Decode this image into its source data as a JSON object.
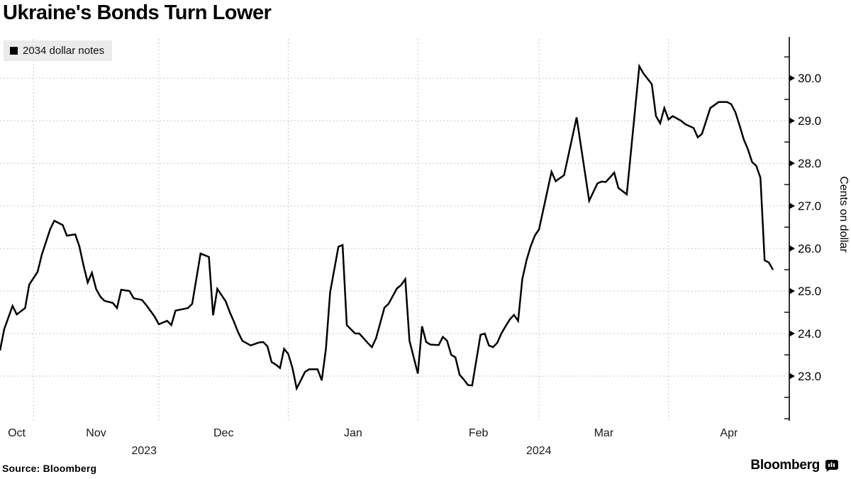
{
  "header": {
    "title": "Ukraine's Bonds Turn Lower"
  },
  "legend": {
    "label": "2034 dollar notes"
  },
  "footer": {
    "source": "Source: Bloomberg",
    "brand": "Bloomberg"
  },
  "icons": {
    "legend_swatch": "black-square",
    "brand_icon": "bloomberg-terminal-speech-bubble-bars"
  },
  "colors": {
    "background": "#ffffff",
    "line": "#000000",
    "grid": "#c9c9c9",
    "axis": "#000000",
    "legend_bg": "#ebebeb",
    "text": "#000000"
  },
  "chart_data": {
    "type": "line",
    "title": "Ukraine's Bonds Turn Lower",
    "ylabel": "Cents on dollar",
    "xlabel": "",
    "grid": "dashed",
    "legend_position": "top-left",
    "legend_entries": [
      "2034 dollar notes"
    ],
    "ylim": [
      21.95,
      30.92
    ],
    "y_ticks": [
      23,
      24,
      25,
      26,
      27,
      28,
      29,
      30
    ],
    "y_minor_ticks": [
      22,
      22.5,
      23.5,
      24.5,
      25.5,
      26.5,
      27.5,
      28.5,
      29.5,
      30.5
    ],
    "x_range": [
      "2023-10-24",
      "2024-04-26"
    ],
    "month_gridlines": [
      "2023-11-01",
      "2023-12-01",
      "2024-01-01",
      "2024-02-01",
      "2024-03-01",
      "2024-04-01"
    ],
    "month_labels": [
      "Oct",
      "Nov",
      "Dec",
      "Jan",
      "Feb",
      "Mar",
      "Apr"
    ],
    "year_labels": [
      "2023",
      "2024"
    ],
    "series": [
      {
        "name": "2034 dollar notes",
        "color": "#000000",
        "points": [
          [
            "2023-10-24",
            23.6
          ],
          [
            "2023-10-25",
            24.1
          ],
          [
            "2023-10-27",
            24.65
          ],
          [
            "2023-10-28",
            24.45
          ],
          [
            "2023-10-30",
            24.6
          ],
          [
            "2023-10-31",
            25.15
          ],
          [
            "2023-11-01",
            25.3
          ],
          [
            "2023-11-02",
            25.45
          ],
          [
            "2023-11-03",
            25.85
          ],
          [
            "2023-11-05",
            26.45
          ],
          [
            "2023-11-06",
            26.65
          ],
          [
            "2023-11-08",
            26.55
          ],
          [
            "2023-11-09",
            26.3
          ],
          [
            "2023-11-11",
            26.33
          ],
          [
            "2023-11-12",
            26.05
          ],
          [
            "2023-11-13",
            25.6
          ],
          [
            "2023-11-14",
            25.2
          ],
          [
            "2023-11-15",
            25.43
          ],
          [
            "2023-11-16",
            25.05
          ],
          [
            "2023-11-17",
            24.87
          ],
          [
            "2023-11-18",
            24.77
          ],
          [
            "2023-11-20",
            24.72
          ],
          [
            "2023-11-21",
            24.6
          ],
          [
            "2023-11-22",
            25.03
          ],
          [
            "2023-11-24",
            25.0
          ],
          [
            "2023-11-25",
            24.83
          ],
          [
            "2023-11-27",
            24.79
          ],
          [
            "2023-11-28",
            24.67
          ],
          [
            "2023-11-30",
            24.4
          ],
          [
            "2023-12-01",
            24.22
          ],
          [
            "2023-12-03",
            24.3
          ],
          [
            "2023-12-04",
            24.2
          ],
          [
            "2023-12-05",
            24.54
          ],
          [
            "2023-12-07",
            24.58
          ],
          [
            "2023-12-08",
            24.6
          ],
          [
            "2023-12-09",
            24.7
          ],
          [
            "2023-12-11",
            25.88
          ],
          [
            "2023-12-13",
            25.8
          ],
          [
            "2023-12-14",
            24.43
          ],
          [
            "2023-12-15",
            25.05
          ],
          [
            "2023-12-17",
            24.76
          ],
          [
            "2023-12-18",
            24.5
          ],
          [
            "2023-12-19",
            24.28
          ],
          [
            "2023-12-20",
            24.03
          ],
          [
            "2023-12-21",
            23.83
          ],
          [
            "2023-12-23",
            23.72
          ],
          [
            "2023-12-25",
            23.79
          ],
          [
            "2023-12-26",
            23.8
          ],
          [
            "2023-12-27",
            23.7
          ],
          [
            "2023-12-28",
            23.33
          ],
          [
            "2023-12-29",
            23.27
          ],
          [
            "2023-12-30",
            23.19
          ],
          [
            "2023-12-31",
            23.64
          ],
          [
            "2024-01-01",
            23.52
          ],
          [
            "2024-01-02",
            23.19
          ],
          [
            "2024-01-03",
            22.71
          ],
          [
            "2024-01-04",
            22.9
          ],
          [
            "2024-01-05",
            23.1
          ],
          [
            "2024-01-06",
            23.16
          ],
          [
            "2024-01-08",
            23.16
          ],
          [
            "2024-01-09",
            22.9
          ],
          [
            "2024-01-10",
            23.64
          ],
          [
            "2024-01-11",
            24.97
          ],
          [
            "2024-01-13",
            26.04
          ],
          [
            "2024-01-14",
            26.08
          ],
          [
            "2024-01-15",
            24.2
          ],
          [
            "2024-01-17",
            24.0
          ],
          [
            "2024-01-18",
            24.0
          ],
          [
            "2024-01-20",
            23.78
          ],
          [
            "2024-01-21",
            23.68
          ],
          [
            "2024-01-22",
            23.89
          ],
          [
            "2024-01-24",
            24.61
          ],
          [
            "2024-01-25",
            24.7
          ],
          [
            "2024-01-27",
            25.06
          ],
          [
            "2024-01-28",
            25.14
          ],
          [
            "2024-01-29",
            25.28
          ],
          [
            "2024-01-30",
            23.83
          ],
          [
            "2024-02-01",
            23.06
          ],
          [
            "2024-02-02",
            24.17
          ],
          [
            "2024-02-03",
            23.8
          ],
          [
            "2024-02-04",
            23.74
          ],
          [
            "2024-02-06",
            23.73
          ],
          [
            "2024-02-07",
            23.92
          ],
          [
            "2024-02-08",
            23.83
          ],
          [
            "2024-02-09",
            23.5
          ],
          [
            "2024-02-10",
            23.44
          ],
          [
            "2024-02-11",
            23.03
          ],
          [
            "2024-02-12",
            22.92
          ],
          [
            "2024-02-13",
            22.79
          ],
          [
            "2024-02-14",
            22.78
          ],
          [
            "2024-02-16",
            23.97
          ],
          [
            "2024-02-17",
            24.0
          ],
          [
            "2024-02-18",
            23.72
          ],
          [
            "2024-02-19",
            23.68
          ],
          [
            "2024-02-20",
            23.78
          ],
          [
            "2024-02-21",
            24.0
          ],
          [
            "2024-02-22",
            24.17
          ],
          [
            "2024-02-23",
            24.33
          ],
          [
            "2024-02-24",
            24.44
          ],
          [
            "2024-02-25",
            24.3
          ],
          [
            "2024-02-26",
            25.28
          ],
          [
            "2024-02-27",
            25.72
          ],
          [
            "2024-02-28",
            26.05
          ],
          [
            "2024-02-29",
            26.3
          ],
          [
            "2024-03-01",
            26.45
          ],
          [
            "2024-03-04",
            27.8
          ],
          [
            "2024-03-05",
            27.58
          ],
          [
            "2024-03-07",
            27.72
          ],
          [
            "2024-03-10",
            29.08
          ],
          [
            "2024-03-13",
            27.12
          ],
          [
            "2024-03-15",
            27.53
          ],
          [
            "2024-03-16",
            27.57
          ],
          [
            "2024-03-17",
            27.56
          ],
          [
            "2024-03-19",
            27.78
          ],
          [
            "2024-03-20",
            27.42
          ],
          [
            "2024-03-22",
            27.27
          ],
          [
            "2024-03-25",
            30.28
          ],
          [
            "2024-03-26",
            30.11
          ],
          [
            "2024-03-28",
            29.86
          ],
          [
            "2024-03-29",
            29.11
          ],
          [
            "2024-03-30",
            28.94
          ],
          [
            "2024-03-31",
            29.3
          ],
          [
            "2024-04-01",
            29.03
          ],
          [
            "2024-04-02",
            29.11
          ],
          [
            "2024-04-04",
            29.0
          ],
          [
            "2024-04-05",
            28.92
          ],
          [
            "2024-04-07",
            28.83
          ],
          [
            "2024-04-08",
            28.61
          ],
          [
            "2024-04-09",
            28.69
          ],
          [
            "2024-04-11",
            29.3
          ],
          [
            "2024-04-13",
            29.44
          ],
          [
            "2024-04-15",
            29.44
          ],
          [
            "2024-04-16",
            29.39
          ],
          [
            "2024-04-17",
            29.2
          ],
          [
            "2024-04-18",
            28.89
          ],
          [
            "2024-04-19",
            28.56
          ],
          [
            "2024-04-20",
            28.33
          ],
          [
            "2024-04-21",
            28.03
          ],
          [
            "2024-04-22",
            27.94
          ],
          [
            "2024-04-23",
            27.66
          ],
          [
            "2024-04-24",
            25.72
          ],
          [
            "2024-04-25",
            25.67
          ],
          [
            "2024-04-26",
            25.5
          ]
        ]
      }
    ]
  }
}
